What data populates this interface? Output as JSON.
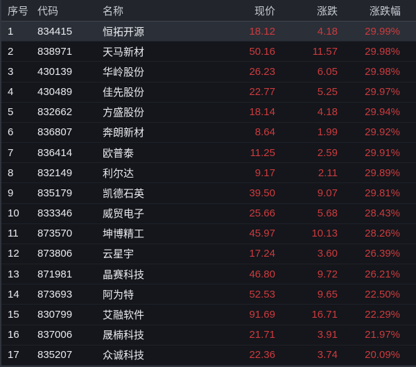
{
  "table": {
    "columns": [
      "序号",
      "代码",
      "名称",
      "现价",
      "涨跌",
      "涨跌幅"
    ],
    "sort": {
      "column": "涨跌幅",
      "direction": "desc"
    },
    "selected_row_index": "1",
    "rows": [
      {
        "index": "1",
        "code": "834415",
        "name": "恒拓开源",
        "price": "18.12",
        "change": "4.18",
        "change_pct": "29.99%"
      },
      {
        "index": "2",
        "code": "838971",
        "name": "天马新材",
        "price": "50.16",
        "change": "11.57",
        "change_pct": "29.98%"
      },
      {
        "index": "3",
        "code": "430139",
        "name": "华岭股份",
        "price": "26.23",
        "change": "6.05",
        "change_pct": "29.98%"
      },
      {
        "index": "4",
        "code": "430489",
        "name": "佳先股份",
        "price": "22.77",
        "change": "5.25",
        "change_pct": "29.97%"
      },
      {
        "index": "5",
        "code": "832662",
        "name": "方盛股份",
        "price": "18.14",
        "change": "4.18",
        "change_pct": "29.94%"
      },
      {
        "index": "6",
        "code": "836807",
        "name": "奔朗新材",
        "price": "8.64",
        "change": "1.99",
        "change_pct": "29.92%"
      },
      {
        "index": "7",
        "code": "836414",
        "name": "欧普泰",
        "price": "11.25",
        "change": "2.59",
        "change_pct": "29.91%"
      },
      {
        "index": "8",
        "code": "832149",
        "name": "利尔达",
        "price": "9.17",
        "change": "2.11",
        "change_pct": "29.89%"
      },
      {
        "index": "9",
        "code": "835179",
        "name": "凯德石英",
        "price": "39.50",
        "change": "9.07",
        "change_pct": "29.81%"
      },
      {
        "index": "10",
        "code": "833346",
        "name": "威贸电子",
        "price": "25.66",
        "change": "5.68",
        "change_pct": "28.43%"
      },
      {
        "index": "11",
        "code": "873570",
        "name": "坤博精工",
        "price": "45.97",
        "change": "10.13",
        "change_pct": "28.26%"
      },
      {
        "index": "12",
        "code": "873806",
        "name": "云星宇",
        "price": "17.24",
        "change": "3.60",
        "change_pct": "26.39%"
      },
      {
        "index": "13",
        "code": "871981",
        "name": "晶赛科技",
        "price": "46.80",
        "change": "9.72",
        "change_pct": "26.21%"
      },
      {
        "index": "14",
        "code": "873693",
        "name": "阿为特",
        "price": "52.53",
        "change": "9.65",
        "change_pct": "22.50%"
      },
      {
        "index": "15",
        "code": "830799",
        "name": "艾融软件",
        "price": "91.69",
        "change": "16.71",
        "change_pct": "22.29%"
      },
      {
        "index": "16",
        "code": "837006",
        "name": "晟楠科技",
        "price": "21.71",
        "change": "3.91",
        "change_pct": "21.97%"
      },
      {
        "index": "17",
        "code": "835207",
        "name": "众诚科技",
        "price": "22.36",
        "change": "3.74",
        "change_pct": "20.09%"
      }
    ]
  },
  "colors": {
    "background": "#14161b",
    "header_background": "#22252c",
    "selected_row_background": "#2b2f37",
    "up_red": "#ce3b3e",
    "text": "#e9ebef",
    "header_text": "#c7cbd2"
  }
}
